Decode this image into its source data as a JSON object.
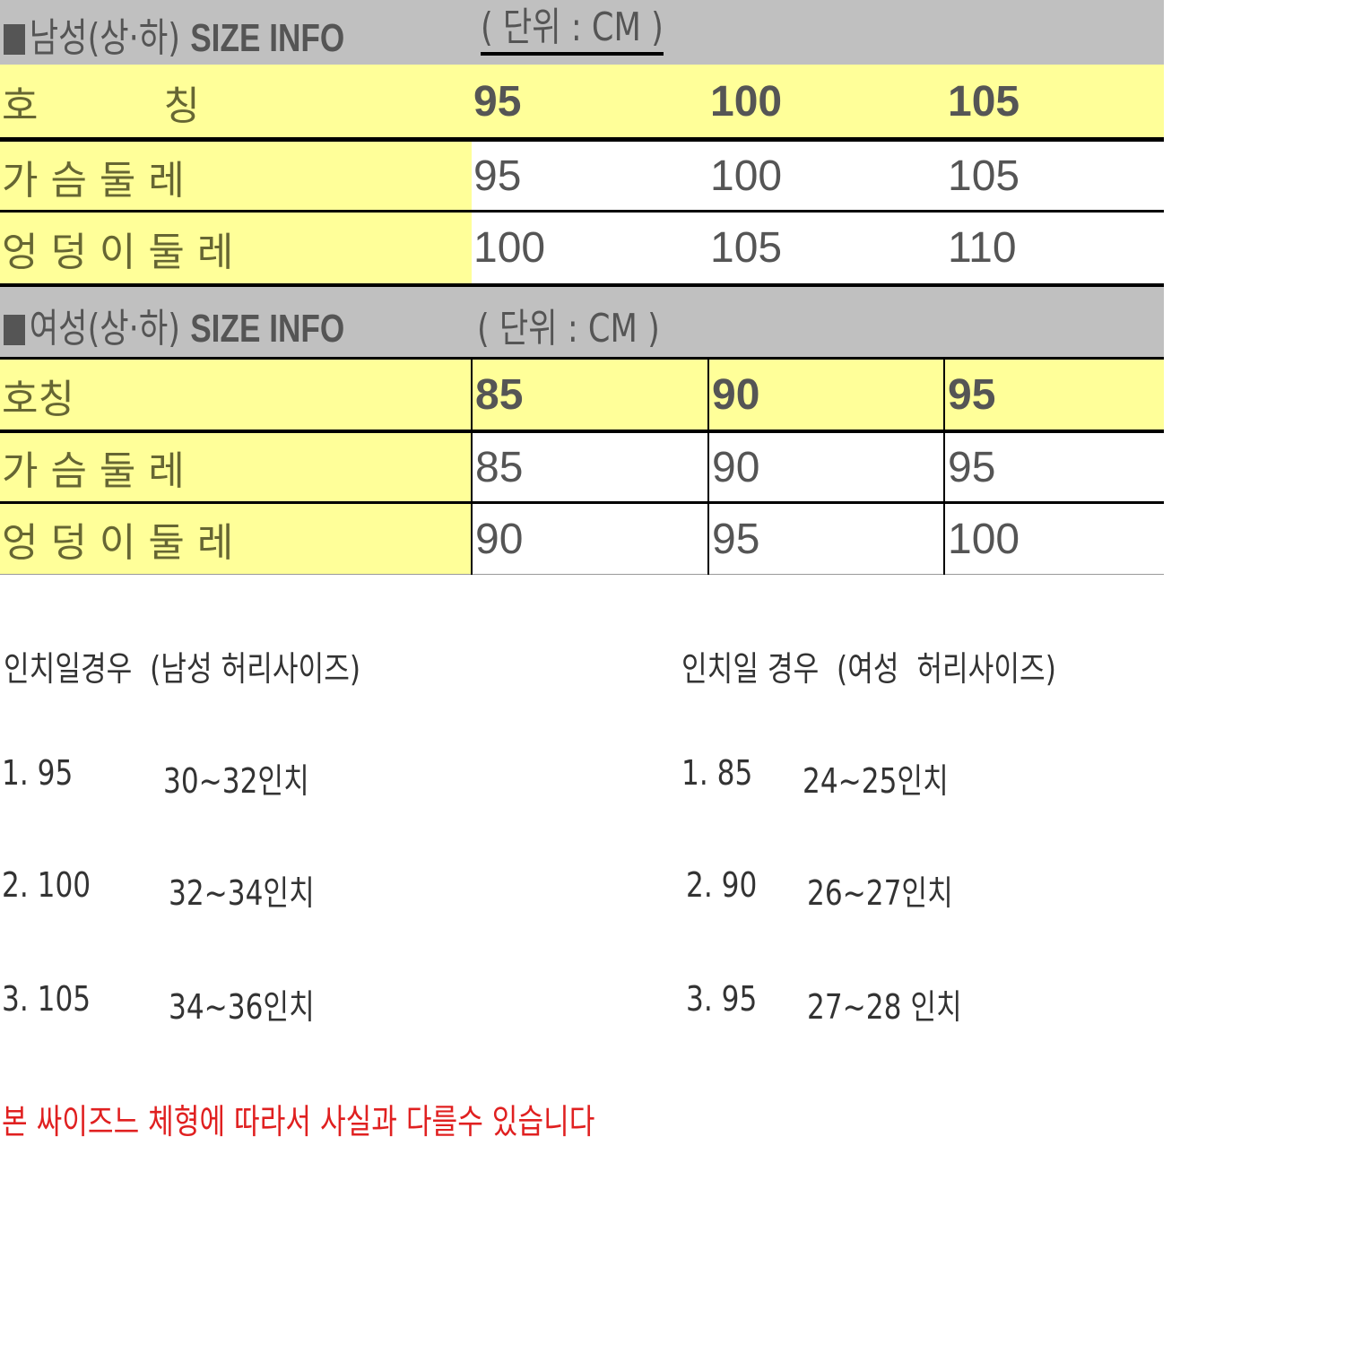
{
  "men": {
    "title_ko": "남성(상·하)",
    "title_en": "SIZE INFO",
    "unit": "( 단위 : CM )",
    "header": {
      "label": "호          칭",
      "sizes": [
        "95",
        "100",
        "105"
      ]
    },
    "rows": [
      {
        "label": "가 슴 둘 레",
        "values": [
          "95",
          "100",
          "105"
        ]
      },
      {
        "label": "엉 덩 이 둘 레",
        "values": [
          "100",
          "105",
          "110"
        ]
      }
    ]
  },
  "women": {
    "title_ko": "여성(상·하)",
    "title_en": "SIZE INFO",
    "unit": "( 단위 : CM )",
    "header": {
      "label": "호칭",
      "sizes": [
        "85",
        "90",
        "95"
      ]
    },
    "rows": [
      {
        "label": "가 슴 둘 레",
        "values": [
          "85",
          "90",
          "95"
        ]
      },
      {
        "label": "엉 덩 이 둘 레",
        "values": [
          "90",
          "95",
          "100"
        ]
      }
    ]
  },
  "inch": {
    "men_title": "인치일경우  (남성 허리사이즈)",
    "women_title": "인치일 경우  (여성  허리사이즈)",
    "men": [
      {
        "size": "1. 95",
        "inch": "30~32인치"
      },
      {
        "size": "2. 100",
        "inch": "32~34인치"
      },
      {
        "size": "3. 105",
        "inch": "34~36인치"
      }
    ],
    "women": [
      {
        "size": "1. 85",
        "inch": "24~25인치"
      },
      {
        "size": "2. 90",
        "inch": "26~27인치"
      },
      {
        "size": "3. 95",
        "inch": "27~28 인치"
      }
    ]
  },
  "notice": "본 싸이즈느 체형에 따라서 사실과 다를수 있습니다",
  "colors": {
    "header_gray": "#c0c0c0",
    "label_yellow": "#ffff99",
    "notice_red": "#e02020"
  }
}
